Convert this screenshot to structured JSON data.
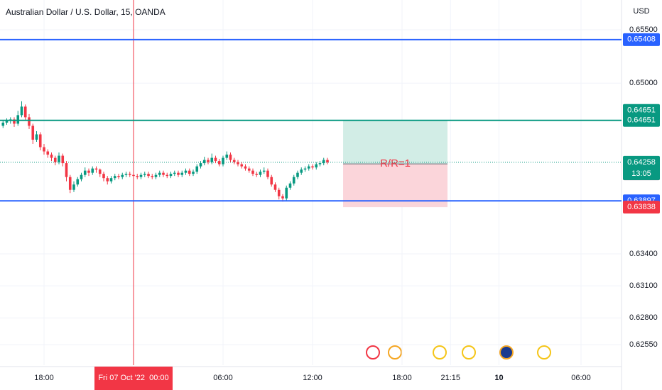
{
  "chart_data": {
    "type": "candlestick",
    "title": "Australian Dollar / U.S. Dollar, 15, OANDA",
    "currency": "USD",
    "x": [
      -11,
      -10,
      -9,
      -8,
      -7,
      -6,
      -5,
      -4,
      -3,
      -2,
      -1,
      0,
      1,
      2,
      3,
      4,
      5,
      6,
      7,
      8,
      9,
      10,
      11,
      12,
      13,
      14,
      15,
      16,
      17,
      18,
      19,
      20,
      21,
      22,
      23,
      24,
      25,
      26,
      27,
      28,
      29,
      30,
      31,
      32,
      33,
      34,
      35,
      36,
      37,
      38,
      39,
      40,
      41,
      42,
      43,
      44,
      45,
      46,
      47,
      48,
      49,
      50,
      51,
      52,
      53,
      54,
      55,
      56,
      57,
      58,
      59,
      60,
      61,
      62,
      63,
      64,
      65,
      66,
      67,
      68,
      69,
      70,
      71,
      72,
      73,
      74,
      75,
      76
    ],
    "open": [
      0.646,
      0.6463,
      0.6465,
      0.6466,
      0.6462,
      0.647,
      0.6478,
      0.6468,
      0.646,
      0.6447,
      0.6452,
      0.644,
      0.6436,
      0.6433,
      0.643,
      0.6426,
      0.6432,
      0.6425,
      0.6412,
      0.64,
      0.6405,
      0.641,
      0.6414,
      0.6418,
      0.6416,
      0.642,
      0.6419,
      0.6415,
      0.6411,
      0.6408,
      0.6411,
      0.6413,
      0.6412,
      0.6414,
      0.6415,
      0.6414,
      0.6413,
      0.6412,
      0.6414,
      0.6415,
      0.6413,
      0.6412,
      0.6414,
      0.6416,
      0.6414,
      0.6413,
      0.6415,
      0.6416,
      0.6414,
      0.6416,
      0.6418,
      0.6415,
      0.6417,
      0.6422,
      0.6425,
      0.6428,
      0.6426,
      0.643,
      0.6427,
      0.6424,
      0.643,
      0.6433,
      0.6428,
      0.6426,
      0.6424,
      0.6422,
      0.642,
      0.6418,
      0.6415,
      0.6414,
      0.6417,
      0.6418,
      0.6412,
      0.6405,
      0.64,
      0.6394,
      0.6392,
      0.6402,
      0.6406,
      0.6412,
      0.6416,
      0.6419,
      0.642,
      0.6422,
      0.6421,
      0.6424,
      0.6425,
      0.6428
    ],
    "high": [
      0.6465,
      0.6467,
      0.6468,
      0.6468,
      0.6474,
      0.6483,
      0.648,
      0.6471,
      0.6462,
      0.6455,
      0.6454,
      0.6443,
      0.6438,
      0.6435,
      0.6432,
      0.6435,
      0.6434,
      0.6427,
      0.6414,
      0.6408,
      0.6412,
      0.6416,
      0.6421,
      0.642,
      0.6422,
      0.6422,
      0.642,
      0.6417,
      0.6413,
      0.6413,
      0.6415,
      0.6415,
      0.6416,
      0.6417,
      0.6417,
      0.6416,
      0.6415,
      0.6416,
      0.6417,
      0.6417,
      0.6415,
      0.6416,
      0.6418,
      0.6418,
      0.6416,
      0.6417,
      0.6418,
      0.6418,
      0.6418,
      0.642,
      0.642,
      0.6419,
      0.6424,
      0.6427,
      0.6431,
      0.643,
      0.6434,
      0.6432,
      0.6429,
      0.6432,
      0.6436,
      0.6435,
      0.643,
      0.6428,
      0.6426,
      0.6424,
      0.6422,
      0.642,
      0.6417,
      0.6419,
      0.6421,
      0.642,
      0.6414,
      0.6407,
      0.6402,
      0.6396,
      0.6404,
      0.6408,
      0.6414,
      0.6418,
      0.6421,
      0.6422,
      0.6424,
      0.6424,
      0.6426,
      0.6427,
      0.643,
      0.643
    ],
    "low": [
      0.6458,
      0.6461,
      0.6462,
      0.6459,
      0.646,
      0.6468,
      0.6465,
      0.6457,
      0.6443,
      0.6445,
      0.6437,
      0.6433,
      0.643,
      0.6427,
      0.6423,
      0.6424,
      0.6422,
      0.6408,
      0.6397,
      0.6398,
      0.6403,
      0.6408,
      0.6412,
      0.6413,
      0.6414,
      0.6416,
      0.6412,
      0.6408,
      0.6405,
      0.6406,
      0.6409,
      0.641,
      0.641,
      0.6412,
      0.6412,
      0.6411,
      0.641,
      0.641,
      0.6412,
      0.6411,
      0.641,
      0.641,
      0.6412,
      0.6412,
      0.6411,
      0.6411,
      0.6413,
      0.6412,
      0.6412,
      0.6414,
      0.6413,
      0.6413,
      0.6415,
      0.642,
      0.6423,
      0.6424,
      0.6424,
      0.6425,
      0.6422,
      0.6422,
      0.6428,
      0.6426,
      0.6424,
      0.6422,
      0.642,
      0.6418,
      0.6416,
      0.6413,
      0.6412,
      0.6412,
      0.6415,
      0.641,
      0.6403,
      0.6398,
      0.6391,
      0.6389,
      0.639,
      0.64,
      0.6404,
      0.641,
      0.6414,
      0.6417,
      0.6418,
      0.6419,
      0.6419,
      0.6422,
      0.6423,
      0.6424
    ],
    "close": [
      0.6463,
      0.6465,
      0.6466,
      0.6462,
      0.647,
      0.6478,
      0.6468,
      0.646,
      0.6447,
      0.6452,
      0.644,
      0.6436,
      0.6433,
      0.643,
      0.6426,
      0.6432,
      0.6425,
      0.6412,
      0.64,
      0.6405,
      0.641,
      0.6414,
      0.6418,
      0.6416,
      0.642,
      0.6419,
      0.6415,
      0.6411,
      0.6408,
      0.6411,
      0.6413,
      0.6412,
      0.6414,
      0.6415,
      0.6414,
      0.6413,
      0.6412,
      0.6414,
      0.6415,
      0.6413,
      0.6412,
      0.6414,
      0.6416,
      0.6414,
      0.6413,
      0.6415,
      0.6416,
      0.6414,
      0.6416,
      0.6418,
      0.6415,
      0.6417,
      0.6422,
      0.6425,
      0.6428,
      0.6426,
      0.643,
      0.6427,
      0.6424,
      0.643,
      0.6433,
      0.6428,
      0.6426,
      0.6424,
      0.6422,
      0.642,
      0.6418,
      0.6415,
      0.6414,
      0.6417,
      0.6418,
      0.6412,
      0.6405,
      0.64,
      0.6394,
      0.6392,
      0.6402,
      0.6406,
      0.6412,
      0.6416,
      0.6419,
      0.642,
      0.6422,
      0.6421,
      0.6424,
      0.6425,
      0.6428,
      0.64258
    ],
    "up_color": "#089981",
    "down_color": "#f23645",
    "xlim": [
      -11.81,
      154.86
    ],
    "xticks": [
      {
        "value": 0,
        "label": "18:00"
      },
      {
        "value": 48,
        "label": "06:00"
      },
      {
        "value": 72,
        "label": "12:00"
      },
      {
        "value": 96,
        "label": "18:00"
      },
      {
        "value": 109,
        "label": "21:15"
      },
      {
        "value": 122,
        "label": "10"
      },
      {
        "value": 144,
        "label": "06:00"
      }
    ],
    "ylim": [
      0.62357,
      0.65779
    ],
    "yticks": [
      {
        "value": 0.655,
        "label": "0.65500"
      },
      {
        "value": 0.65,
        "label": "0.65000"
      },
      {
        "value": 0.634,
        "label": "0.63400"
      },
      {
        "value": 0.631,
        "label": "0.63100"
      },
      {
        "value": 0.628,
        "label": "0.62800"
      },
      {
        "value": 0.6255,
        "label": "0.62550"
      }
    ],
    "grid": true,
    "hlines": [
      {
        "value": 0.65408,
        "color": "#2962ff"
      },
      {
        "value": 0.64651,
        "color": "#089981"
      },
      {
        "value": 0.63897,
        "color": "#2962ff"
      }
    ],
    "last_price": {
      "value": 0.64258,
      "countdown": "13:05",
      "color": "#089981"
    },
    "price_tags": [
      {
        "value": 0.64243,
        "color": "#6a6d78"
      },
      {
        "value": 0.63838,
        "color": "#f23645"
      }
    ],
    "position": {
      "target": 0.64651,
      "entry": 0.64243,
      "stop": 0.63838,
      "x": [
        80.2,
        108.2
      ],
      "label": "R/R=1",
      "profit_color": "#d2ede6",
      "loss_color": "#fbd5da"
    },
    "crosshair": {
      "x": 24,
      "label": "Fri 07 Oct '22  00:00",
      "color": "#f23645"
    }
  }
}
